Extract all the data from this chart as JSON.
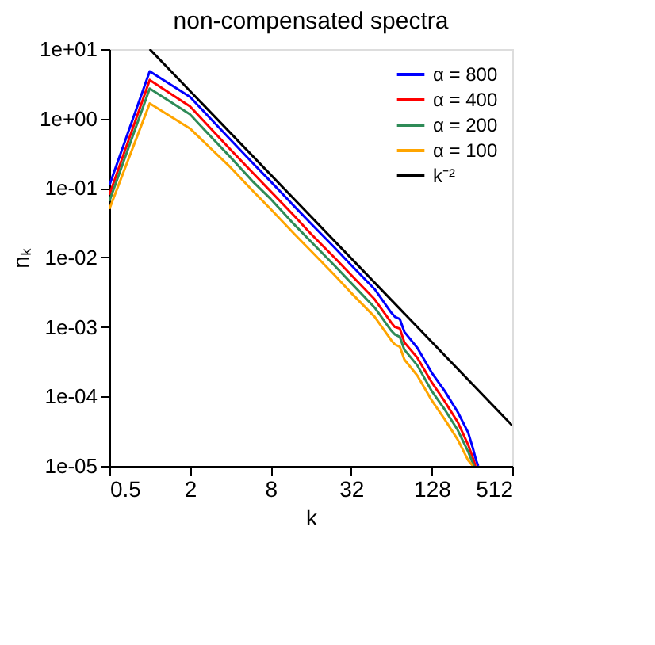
{
  "chart_data": {
    "type": "line",
    "title": "non-compensated spectra",
    "xlabel": "k",
    "ylabel": "nₖ",
    "log": "xy",
    "xlim": [
      0.5,
      512
    ],
    "ylim": [
      1e-05,
      10
    ],
    "xticks": [
      0.5,
      2,
      8,
      32,
      128,
      512
    ],
    "yticks": [
      {
        "value": 1e-05,
        "label": "1e-05"
      },
      {
        "value": 0.0001,
        "label": "1e-04"
      },
      {
        "value": 0.001,
        "label": "1e-03"
      },
      {
        "value": 0.01,
        "label": "1e-02"
      },
      {
        "value": 0.1,
        "label": "1e-01"
      },
      {
        "value": 1,
        "label": "1e+00"
      },
      {
        "value": 10,
        "label": "1e+01"
      }
    ],
    "grid": false,
    "legend": "top right",
    "line_style": "solid",
    "marker": "none",
    "series": [
      {
        "name": "α =  800",
        "color": "#0000ff",
        "x": [
          0.5,
          1,
          2,
          3,
          4,
          6,
          8,
          12,
          16,
          24,
          32,
          48,
          64,
          68,
          74,
          80,
          100,
          128,
          160,
          200,
          240,
          260,
          275,
          285
        ],
        "values": [
          0.11,
          4.8,
          2.05,
          0.9,
          0.5,
          0.22,
          0.125,
          0.055,
          0.031,
          0.014,
          0.0078,
          0.0035,
          0.0016,
          0.0014,
          0.0013,
          0.00085,
          0.0005,
          0.00022,
          0.00012,
          6e-05,
          3e-05,
          1.8e-05,
          1.2e-05,
          1e-05
        ]
      },
      {
        "name": "α =  400",
        "color": "#ff0000",
        "x": [
          0.5,
          1,
          2,
          3,
          4,
          6,
          8,
          12,
          16,
          24,
          32,
          48,
          64,
          68,
          74,
          80,
          100,
          128,
          160,
          200,
          240,
          260,
          272
        ],
        "values": [
          0.08,
          3.6,
          1.5,
          0.65,
          0.36,
          0.16,
          0.09,
          0.04,
          0.022,
          0.01,
          0.0056,
          0.0025,
          0.00115,
          0.001,
          0.00095,
          0.0006,
          0.00036,
          0.00016,
          8.5e-05,
          4.3e-05,
          2e-05,
          1.3e-05,
          1e-05
        ]
      },
      {
        "name": "α =  200",
        "color": "#2e8b57",
        "x": [
          0.5,
          1,
          2,
          3,
          4,
          6,
          8,
          12,
          16,
          24,
          32,
          48,
          64,
          68,
          74,
          80,
          100,
          128,
          160,
          200,
          240,
          265
        ],
        "values": [
          0.065,
          2.7,
          1.15,
          0.5,
          0.28,
          0.12,
          0.07,
          0.03,
          0.017,
          0.0077,
          0.0043,
          0.0019,
          0.00088,
          0.00078,
          0.00072,
          0.00047,
          0.00028,
          0.00012,
          6.5e-05,
          3.3e-05,
          1.6e-05,
          1e-05
        ]
      },
      {
        "name": "α =  100",
        "color": "#ffa500",
        "x": [
          0.5,
          1,
          2,
          3,
          4,
          6,
          8,
          12,
          16,
          24,
          32,
          48,
          64,
          68,
          74,
          80,
          100,
          128,
          160,
          200,
          240,
          260
        ],
        "values": [
          0.05,
          1.65,
          0.72,
          0.34,
          0.2,
          0.088,
          0.05,
          0.022,
          0.0125,
          0.0056,
          0.0031,
          0.0014,
          0.00064,
          0.00056,
          0.00052,
          0.00034,
          0.0002,
          8.8e-05,
          4.7e-05,
          2.4e-05,
          1.2e-05,
          1e-05
        ]
      },
      {
        "name": "k⁻²",
        "color": "#000000",
        "x": [
          1,
          512
        ],
        "values": [
          10,
          3.81e-05
        ]
      }
    ]
  }
}
